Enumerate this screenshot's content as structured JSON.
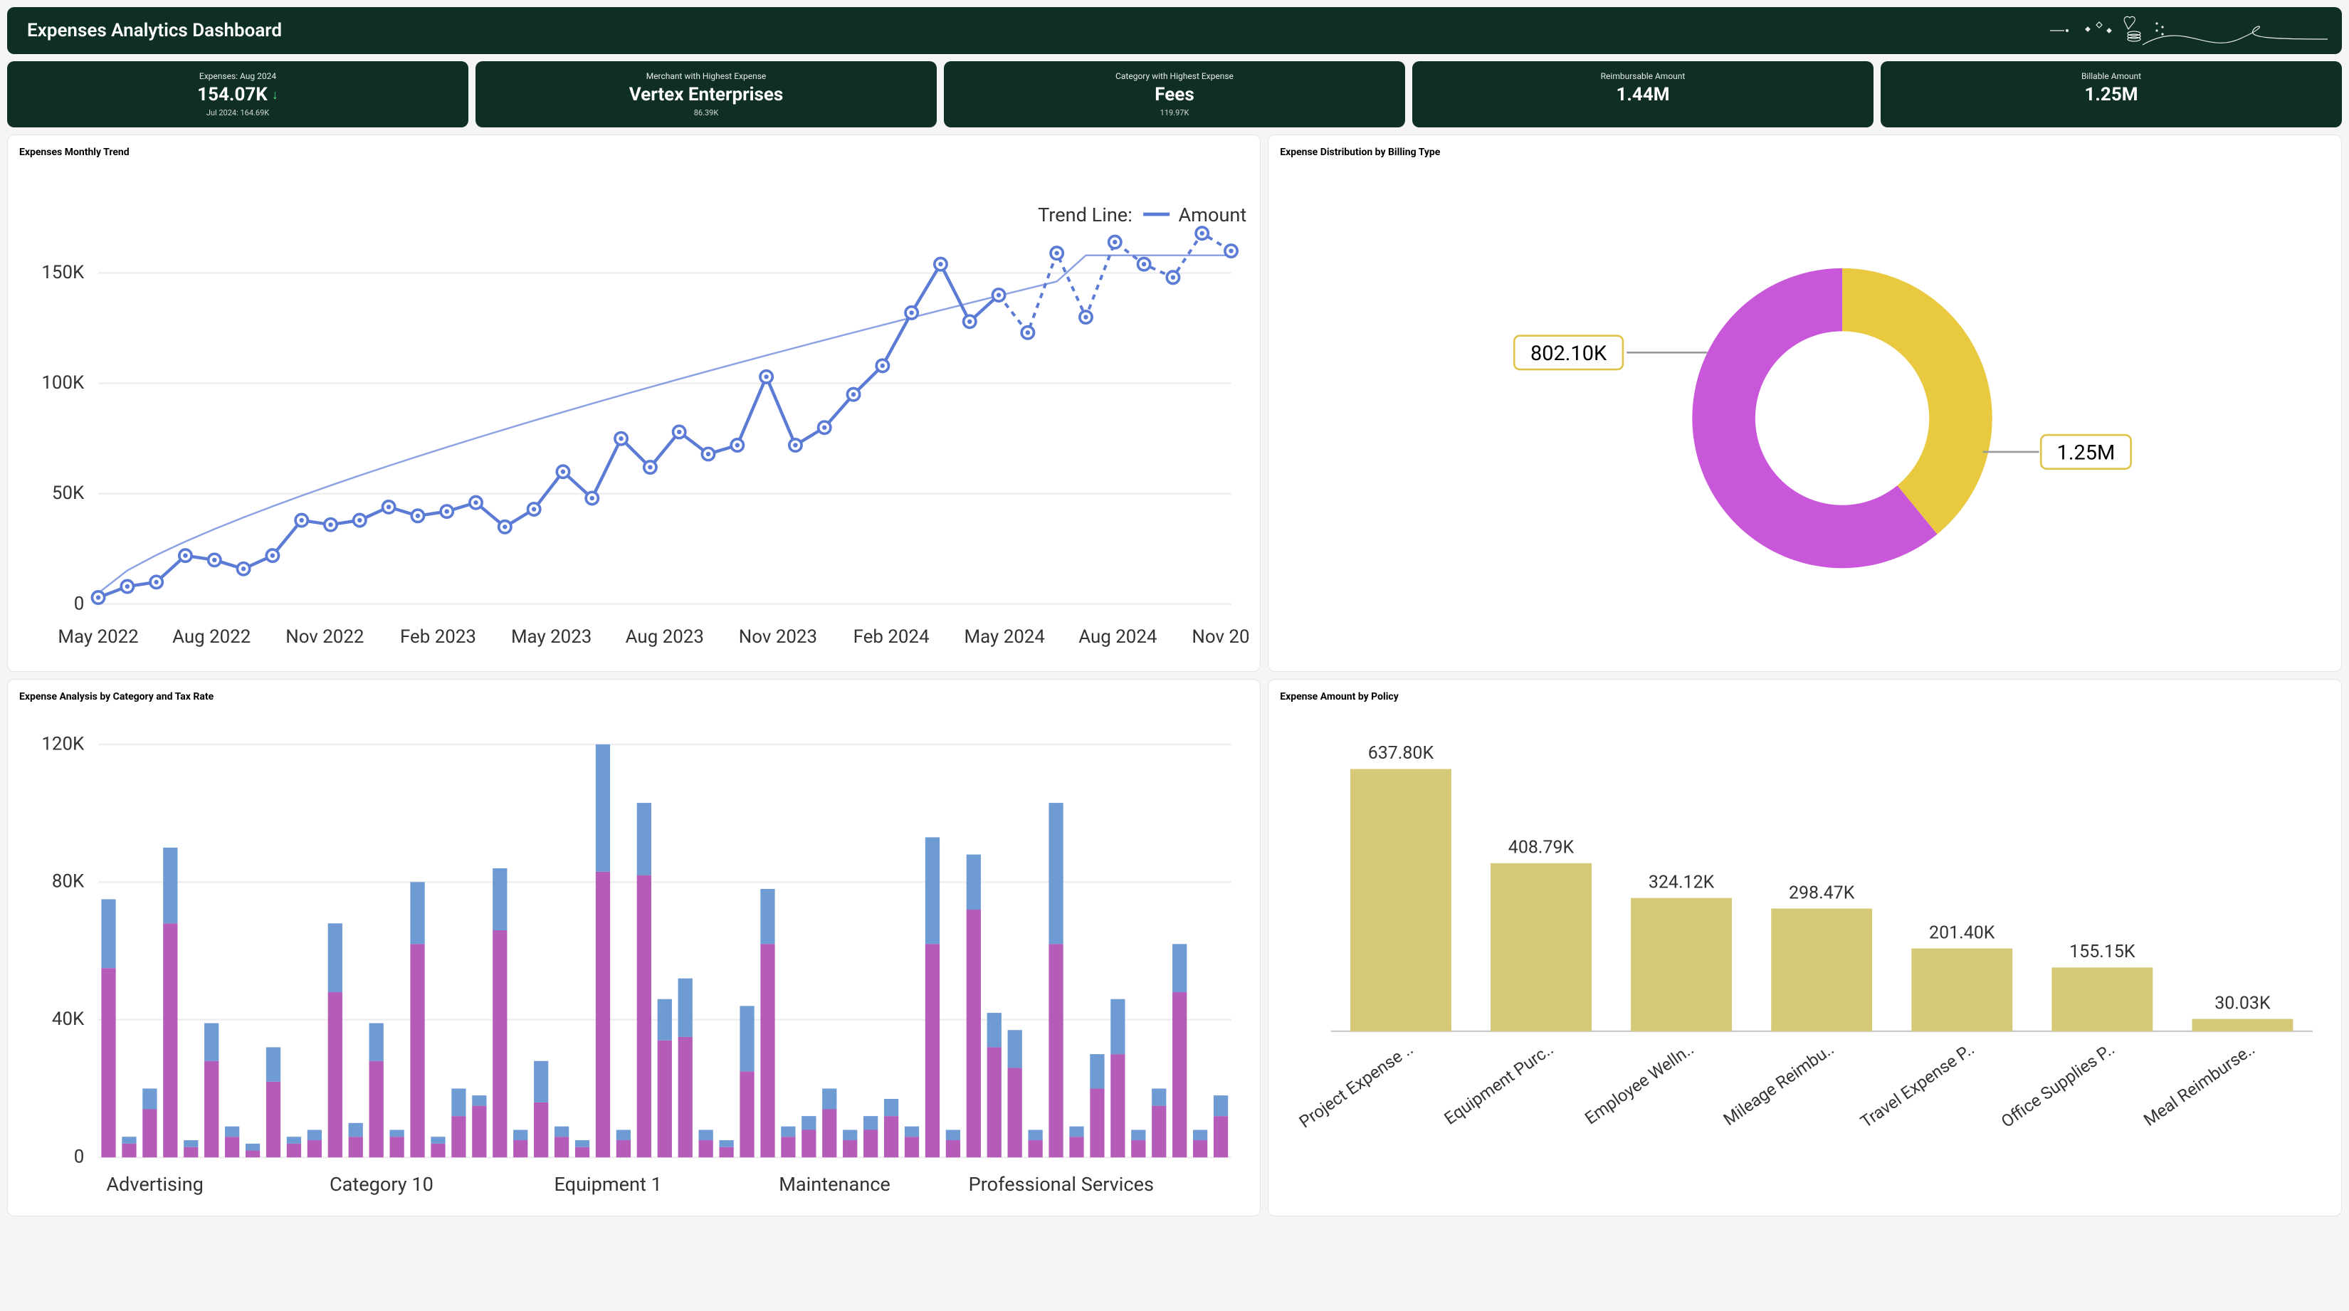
{
  "header": {
    "title": "Expenses Analytics Dashboard"
  },
  "kpis": [
    {
      "sup": "Expenses: Aug 2024",
      "value": "154.07K",
      "trend": "down",
      "sub": "Jul 2024: 164.69K"
    },
    {
      "sup": "Merchant with Highest Expense",
      "value": "Vertex Enterprises",
      "sub": "86.39K"
    },
    {
      "sup": "Category with Highest Expense",
      "value": "Fees",
      "sub": "119.97K"
    },
    {
      "sup": "Reimbursable Amount",
      "value": "1.44M"
    },
    {
      "sup": "Billable Amount",
      "value": "1.25M"
    }
  ],
  "monthly_trend": {
    "title": "Expenses Monthly Trend",
    "type": "line",
    "y_ticks": [
      0,
      50,
      100,
      150
    ],
    "y_tick_labels": [
      "0",
      "50K",
      "100K",
      "150K"
    ],
    "ylim": [
      0,
      175
    ],
    "line_color": "#5b7bd5",
    "marker_fill": "#ffffff",
    "marker_stroke": "#5b7bd5",
    "trend_color": "#5b7bd5",
    "background": "#ffffff",
    "legend_label_left": "Trend Line:",
    "legend_label_right": "Amount",
    "x_labels_shown": [
      "May 2022",
      "Aug 2022",
      "Nov 2022",
      "Feb 2023",
      "May 2023",
      "Aug 2023",
      "Nov 2023",
      "Feb 2024",
      "May 2024",
      "Aug 2024",
      "Nov 2024"
    ],
    "values": [
      3,
      8,
      10,
      22,
      20,
      16,
      22,
      38,
      36,
      38,
      44,
      40,
      42,
      46,
      35,
      43,
      60,
      48,
      75,
      62,
      78,
      68,
      72,
      103,
      72,
      80,
      95,
      108,
      132,
      154,
      128,
      140,
      123,
      159,
      130,
      164,
      154,
      148,
      168,
      160
    ],
    "forecast_start_index": 31
  },
  "donut": {
    "title": "Expense Distribution by Billing Type",
    "type": "donut",
    "slices": [
      {
        "label": "802.10K",
        "value": 802.1,
        "color": "#e8c940"
      },
      {
        "label": "1.25M",
        "value": 1250,
        "color": "#c957d9"
      }
    ],
    "inner_radius_ratio": 0.58,
    "background": "#ffffff"
  },
  "stacked": {
    "title": "Expense Analysis by Category and Tax Rate",
    "type": "stacked-bar",
    "y_ticks": [
      0,
      40,
      80,
      120
    ],
    "y_tick_labels": [
      "0",
      "40K",
      "80K",
      "120K"
    ],
    "ylim": [
      0,
      125
    ],
    "color_bottom": "#b55bb8",
    "color_top": "#6e9bd4",
    "x_group_labels": [
      "Advertising",
      "Category 10",
      "Equipment 1",
      "Maintenance",
      "Professional Services"
    ],
    "bars": [
      [
        55,
        75
      ],
      [
        4,
        6
      ],
      [
        14,
        20
      ],
      [
        68,
        90
      ],
      [
        3,
        5
      ],
      [
        28,
        39
      ],
      [
        6,
        9
      ],
      [
        2,
        4
      ],
      [
        22,
        32
      ],
      [
        4,
        6
      ],
      [
        5,
        8
      ],
      [
        48,
        68
      ],
      [
        6,
        10
      ],
      [
        28,
        39
      ],
      [
        6,
        8
      ],
      [
        62,
        80
      ],
      [
        4,
        6
      ],
      [
        12,
        20
      ],
      [
        15,
        18
      ],
      [
        66,
        84
      ],
      [
        5,
        8
      ],
      [
        16,
        28
      ],
      [
        6,
        9
      ],
      [
        3,
        5
      ],
      [
        83,
        120
      ],
      [
        5,
        8
      ],
      [
        82,
        103
      ],
      [
        34,
        46
      ],
      [
        35,
        52
      ],
      [
        5,
        8
      ],
      [
        3,
        5
      ],
      [
        25,
        44
      ],
      [
        62,
        78
      ],
      [
        6,
        9
      ],
      [
        8,
        12
      ],
      [
        14,
        20
      ],
      [
        5,
        8
      ],
      [
        8,
        12
      ],
      [
        12,
        17
      ],
      [
        6,
        9
      ],
      [
        62,
        93
      ],
      [
        5,
        8
      ],
      [
        72,
        88
      ],
      [
        32,
        42
      ],
      [
        26,
        37
      ],
      [
        5,
        8
      ],
      [
        62,
        103
      ],
      [
        6,
        9
      ],
      [
        20,
        30
      ],
      [
        30,
        46
      ],
      [
        5,
        8
      ],
      [
        15,
        20
      ],
      [
        48,
        62
      ],
      [
        5,
        8
      ],
      [
        12,
        18
      ]
    ]
  },
  "policy": {
    "title": "Expense Amount by Policy",
    "type": "bar",
    "bar_color": "#d5c877",
    "ylim": [
      0,
      700
    ],
    "bars": [
      {
        "label": "Project Expense ..",
        "value": 637.8,
        "text": "637.80K"
      },
      {
        "label": "Equipment Purc..",
        "value": 408.79,
        "text": "408.79K"
      },
      {
        "label": "Employee Welln..",
        "value": 324.12,
        "text": "324.12K"
      },
      {
        "label": "Mileage Reimbu..",
        "value": 298.47,
        "text": "298.47K"
      },
      {
        "label": "Travel Expense P..",
        "value": 201.4,
        "text": "201.40K"
      },
      {
        "label": "Office Supplies P..",
        "value": 155.15,
        "text": "155.15K"
      },
      {
        "label": "Meal Reimburse..",
        "value": 30.03,
        "text": "30.03K"
      }
    ]
  }
}
